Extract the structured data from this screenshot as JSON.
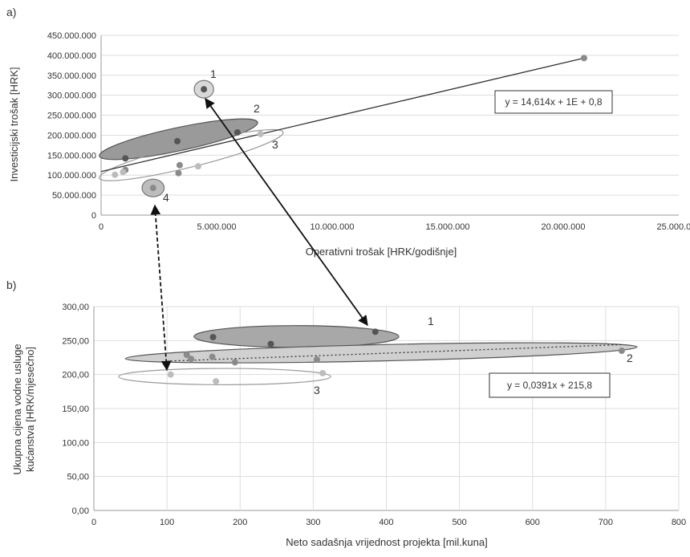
{
  "chart_data": [
    {
      "panel_label": "a)",
      "type": "scatter",
      "xlabel": "Operativni trošak [HRK/godišnje]",
      "ylabel": "Investicijski trošak [HRK]",
      "xlim": [
        0,
        25000000
      ],
      "ylim": [
        0,
        450000000
      ],
      "xticks": [
        0,
        5000000,
        10000000,
        15000000,
        20000000,
        25000000
      ],
      "xtick_labels": [
        "0",
        "5.000.000",
        "10.000.000",
        "15.000.000",
        "20.000.000",
        "25.000.000"
      ],
      "yticks": [
        0,
        50000000,
        100000000,
        150000000,
        200000000,
        250000000,
        300000000,
        350000000,
        400000000,
        450000000
      ],
      "ytick_labels": [
        "0",
        "50.000.000",
        "100.000.000",
        "150.000.000",
        "200.000.000",
        "250.000.000",
        "300.000.000",
        "350.000.000",
        "400.000.000",
        "450.000.000"
      ],
      "grid": true,
      "points": [
        {
          "x": 4450000,
          "y": 315000000,
          "shade": "dark"
        },
        {
          "x": 1050000,
          "y": 142000000,
          "shade": "dark"
        },
        {
          "x": 3300000,
          "y": 185000000,
          "shade": "dark"
        },
        {
          "x": 5900000,
          "y": 207000000,
          "shade": "dark"
        },
        {
          "x": 20900000,
          "y": 393000000,
          "shade": "mid"
        },
        {
          "x": 3400000,
          "y": 125000000,
          "shade": "mid"
        },
        {
          "x": 3350000,
          "y": 105000000,
          "shade": "mid"
        },
        {
          "x": 4200000,
          "y": 122000000,
          "shade": "light"
        },
        {
          "x": 1050000,
          "y": 113000000,
          "shade": "mid"
        },
        {
          "x": 950000,
          "y": 108000000,
          "shade": "light"
        },
        {
          "x": 600000,
          "y": 101000000,
          "shade": "light"
        },
        {
          "x": 6900000,
          "y": 203000000,
          "shade": "light"
        },
        {
          "x": 2250000,
          "y": 68000000,
          "shade": "mid"
        }
      ],
      "trendline": {
        "x": [
          0,
          20900000
        ],
        "y": [
          109000000,
          393000000
        ],
        "dashed": false
      },
      "equation": "y = 14,614x + 1E + 0,8",
      "clusters": [
        {
          "label": "1",
          "cx": 4450000,
          "cy": 315000000,
          "rx": 420000,
          "ry": 22000000,
          "fill": "#d8d8d8",
          "stroke": "#777777"
        },
        {
          "label": "2",
          "cx": 3350000,
          "cy": 190000000,
          "rx": 3500000,
          "ry": 29000000,
          "rotate": -12,
          "fill": "#9a9a9a",
          "stroke": "#555555"
        },
        {
          "label": "3",
          "cx": 3900000,
          "cy": 150000000,
          "rx": 4100000,
          "ry": 29000000,
          "rotate": -14,
          "fill": "none",
          "stroke": "#9a9a9a"
        },
        {
          "label": "4",
          "cx": 2250000,
          "cy": 68000000,
          "rx": 480000,
          "ry": 22000000,
          "fill": "#bdbdbd",
          "stroke": "#777777"
        }
      ]
    },
    {
      "panel_label": "b)",
      "type": "scatter",
      "xlabel": "Neto sadašnja vrijednost projekta [mil.kuna]",
      "ylabel": "Ukupna cijena vodne usluge kućanstva [HRK/mjesečno]",
      "ylabel_lines": [
        "Ukupna cijena vodne usluge",
        "kućanstva [HRK/mjesečno]"
      ],
      "xlim": [
        0,
        800
      ],
      "ylim": [
        0,
        300
      ],
      "xticks": [
        0,
        100,
        200,
        300,
        400,
        500,
        600,
        700,
        800
      ],
      "xtick_labels": [
        "0",
        "100",
        "200",
        "300",
        "400",
        "500",
        "600",
        "700",
        "800"
      ],
      "yticks": [
        0,
        50,
        100,
        150,
        200,
        250,
        300
      ],
      "ytick_labels": [
        "0,00",
        "50,00",
        "100,00",
        "150,00",
        "200,00",
        "250,00",
        "300,00"
      ],
      "grid": true,
      "points": [
        {
          "x": 163,
          "y": 255,
          "shade": "dark"
        },
        {
          "x": 242,
          "y": 245,
          "shade": "dark"
        },
        {
          "x": 385,
          "y": 263,
          "shade": "dark"
        },
        {
          "x": 127,
          "y": 229,
          "shade": "mid"
        },
        {
          "x": 133,
          "y": 223,
          "shade": "mid"
        },
        {
          "x": 162,
          "y": 226,
          "shade": "mid"
        },
        {
          "x": 193,
          "y": 218,
          "shade": "mid"
        },
        {
          "x": 305,
          "y": 222,
          "shade": "mid"
        },
        {
          "x": 722,
          "y": 235,
          "shade": "mid"
        },
        {
          "x": 105,
          "y": 200,
          "shade": "light"
        },
        {
          "x": 167,
          "y": 190,
          "shade": "light"
        },
        {
          "x": 313,
          "y": 202,
          "shade": "light"
        }
      ],
      "trendline": {
        "x": [
          105,
          722
        ],
        "y": [
          219.9,
          244.0
        ],
        "dashed": true
      },
      "equation": "y = 0,0391x + 215,8",
      "clusters": [
        {
          "label": "1",
          "cx": 277,
          "cy": 256,
          "rx": 140,
          "ry": 16,
          "rotate": 0,
          "fill": "#a8a8a8",
          "stroke": "#555555"
        },
        {
          "label": "2",
          "cx": 393,
          "cy": 232,
          "rx": 350,
          "ry": 12,
          "rotate": -1.3,
          "fill": "#d0d0d0",
          "stroke": "#555555"
        },
        {
          "label": "3",
          "cx": 179,
          "cy": 197,
          "rx": 145,
          "ry": 12,
          "rotate": 0,
          "fill": "none",
          "stroke": "#9a9a9a"
        }
      ]
    }
  ],
  "cluster_labels_a": {
    "c1": "1",
    "c2": "2",
    "c3": "3",
    "c4": "4"
  },
  "cluster_labels_b": {
    "c1": "1",
    "c2": "2",
    "c3": "3"
  }
}
